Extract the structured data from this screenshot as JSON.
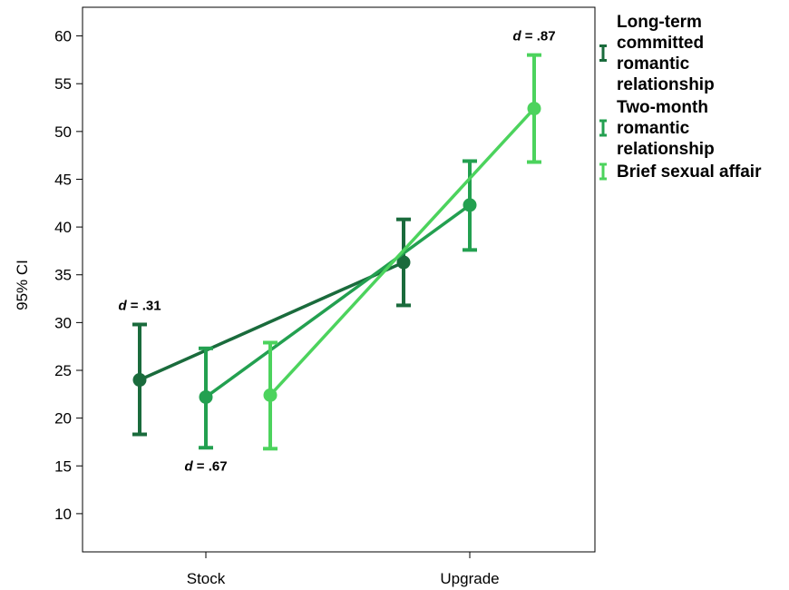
{
  "chart_data": {
    "type": "line",
    "title": "",
    "xlabel": "",
    "ylabel": "95% CI",
    "categories": [
      "Stock",
      "Upgrade"
    ],
    "ylim": [
      6,
      63
    ],
    "yticks": [
      10,
      15,
      20,
      25,
      30,
      35,
      40,
      45,
      50,
      55,
      60
    ],
    "grid": false,
    "legend_position": "right",
    "series": [
      {
        "name": "Long-term committed romantic relationship",
        "legend_lines": [
          "Long-term",
          "committed",
          "romantic",
          "relationship"
        ],
        "color": "#1a6b3c",
        "means": [
          24.0,
          36.3
        ],
        "ci_low": [
          18.3,
          31.8
        ],
        "ci_high": [
          29.8,
          40.8
        ]
      },
      {
        "name": "Two-month romantic relationship",
        "legend_lines": [
          "Two-month",
          "romantic",
          "relationship"
        ],
        "color": "#23a050",
        "means": [
          22.2,
          42.3
        ],
        "ci_low": [
          16.9,
          37.6
        ],
        "ci_high": [
          27.3,
          46.9
        ]
      },
      {
        "name": "Brief sexual affair",
        "legend_lines": [
          "Brief sexual affair"
        ],
        "color": "#4cd35d",
        "means": [
          22.4,
          52.4
        ],
        "ci_low": [
          16.8,
          46.8
        ],
        "ci_high": [
          27.9,
          58.0
        ]
      }
    ],
    "annotations": [
      {
        "italic": "d",
        "text": " = .31",
        "x_category": "Stock",
        "series_index": 0,
        "anchor": "above"
      },
      {
        "italic": "d",
        "text": " = .67",
        "x_category": "Stock",
        "series_index": 1,
        "anchor": "below"
      },
      {
        "italic": "d",
        "text": " = .87",
        "x_category": "Upgrade",
        "series_index": 2,
        "anchor": "above"
      }
    ]
  }
}
